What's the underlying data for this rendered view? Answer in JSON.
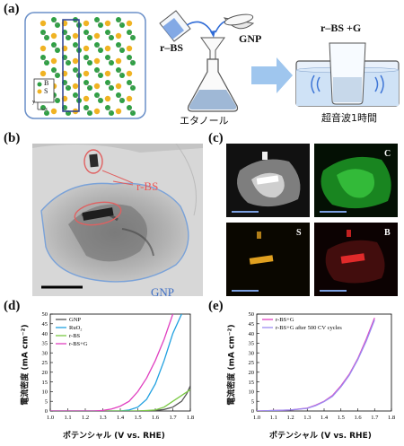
{
  "panel_a": {
    "label": "(a)",
    "legend_b": "B",
    "legend_s": "S",
    "legend_y": "y",
    "legend_x": "x",
    "rbs": "r–BS",
    "gnp": "GNP",
    "ethanol": "エタノール",
    "product": "r–BS +G",
    "sonication": "超音波1時間"
  },
  "panel_b": {
    "label": "(b)",
    "rbs": "r-BS",
    "gnp": "GNP"
  },
  "panel_c": {
    "label": "(c)",
    "C": "C",
    "S": "S",
    "B": "B"
  },
  "panel_d": {
    "label": "(d)",
    "xlabel": "ポテンシャル  (V vs. RHE)",
    "ylabel": "電流密度 (mA cm⁻²)",
    "legend": [
      "GNP",
      "RuO₂",
      "r-BS",
      "r-BS+G"
    ],
    "colors": [
      "#555555",
      "#20a0e0",
      "#7ac943",
      "#e040c0"
    ]
  },
  "panel_e": {
    "label": "(e)",
    "xlabel": "ポテンシャル  (V vs. RHE)",
    "ylabel": "電流密度 (mA cm⁻²)",
    "legend": [
      "r-BS+G",
      "r-BS+G after 500 CV cycles"
    ],
    "colors": [
      "#e040c0",
      "#9a8cf0"
    ]
  },
  "chart_data": [
    {
      "type": "line",
      "xlabel": "ポテンシャル  (V vs. RHE)",
      "ylabel": "電流密度 (mA cm⁻²)",
      "xlim": [
        1.0,
        1.8
      ],
      "ylim": [
        0,
        50
      ],
      "xticks": [
        "1.0",
        "1.1",
        "1.2",
        "1.3",
        "1.4",
        "1.5",
        "1.6",
        "1.7",
        "1.8"
      ],
      "yticks": [
        "0",
        "5",
        "10",
        "15",
        "20",
        "25",
        "30",
        "35",
        "40",
        "45",
        "50"
      ],
      "series": [
        {
          "name": "GNP",
          "x": [
            1.0,
            1.5,
            1.6,
            1.65,
            1.7,
            1.75,
            1.78,
            1.8
          ],
          "y": [
            0,
            0,
            0.3,
            0.8,
            2,
            5,
            9,
            13
          ]
        },
        {
          "name": "RuO₂",
          "x": [
            1.0,
            1.4,
            1.45,
            1.5,
            1.55,
            1.6,
            1.65,
            1.7,
            1.75
          ],
          "y": [
            0,
            0,
            0.5,
            2,
            6,
            14,
            26,
            40,
            50
          ]
        },
        {
          "name": "r-BS",
          "x": [
            1.0,
            1.5,
            1.6,
            1.65,
            1.7,
            1.75,
            1.8
          ],
          "y": [
            0,
            0,
            0.5,
            2,
            5,
            8,
            11
          ]
        },
        {
          "name": "r-BS+G",
          "x": [
            1.0,
            1.25,
            1.3,
            1.35,
            1.4,
            1.45,
            1.5,
            1.55,
            1.6,
            1.65,
            1.7
          ],
          "y": [
            0,
            0,
            0.3,
            1,
            2.5,
            5,
            10,
            17,
            26,
            37,
            50
          ]
        }
      ]
    },
    {
      "type": "line",
      "xlabel": "ポテンシャル  (V vs. RHE)",
      "ylabel": "電流密度 (mA cm⁻²)",
      "xlim": [
        1.0,
        1.8
      ],
      "ylim": [
        0,
        50
      ],
      "xticks": [
        "1.0",
        "1.1",
        "1.2",
        "1.3",
        "1.4",
        "1.5",
        "1.6",
        "1.7",
        "1.8"
      ],
      "yticks": [
        "0",
        "5",
        "10",
        "15",
        "20",
        "25",
        "30",
        "35",
        "40",
        "45",
        "50"
      ],
      "series": [
        {
          "name": "r-BS+G",
          "x": [
            1.0,
            1.2,
            1.3,
            1.35,
            1.4,
            1.45,
            1.5,
            1.55,
            1.6,
            1.65,
            1.7
          ],
          "y": [
            0,
            0.5,
            1.5,
            3,
            5,
            8,
            13,
            19,
            27,
            37,
            48
          ]
        },
        {
          "name": "r-BS+G after 500 CV cycles",
          "x": [
            1.0,
            1.2,
            1.3,
            1.35,
            1.4,
            1.45,
            1.5,
            1.55,
            1.6,
            1.65,
            1.7
          ],
          "y": [
            0,
            0.5,
            1.4,
            2.8,
            4.8,
            7.6,
            12.5,
            18.5,
            26.5,
            36,
            47
          ]
        }
      ]
    }
  ]
}
